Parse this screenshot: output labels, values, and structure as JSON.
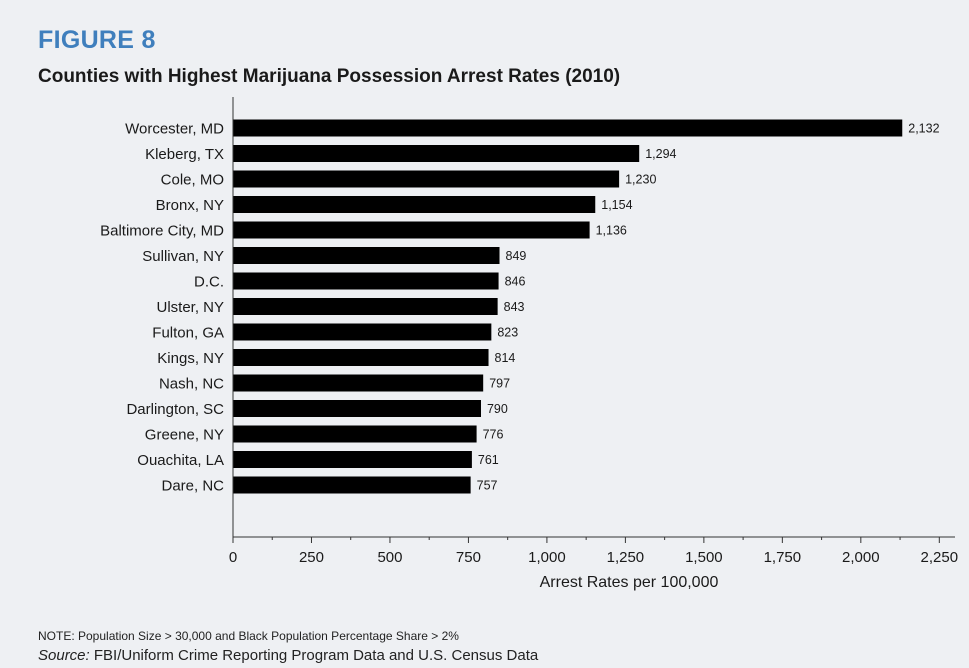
{
  "figure": {
    "label": "FIGURE 8",
    "title": "Counties with Highest Marijuana Possession Arrest Rates (2010)",
    "note": "NOTE: Population Size > 30,000 and Black Population Percentage Share > 2%",
    "source_prefix": "Source:",
    "source_text": " FBI/Uniform Crime Reporting Program Data and U.S. Census Data"
  },
  "chart_data": {
    "type": "bar",
    "orientation": "horizontal",
    "categories": [
      "Worcester, MD",
      "Kleberg, TX",
      "Cole, MO",
      "Bronx, NY",
      "Baltimore City, MD",
      "Sullivan, NY",
      "D.C.",
      "Ulster, NY",
      "Fulton, GA",
      "Kings, NY",
      "Nash, NC",
      "Darlington, SC",
      "Greene, NY",
      "Ouachita, LA",
      "Dare, NC"
    ],
    "values": [
      2132,
      1294,
      1230,
      1154,
      1136,
      849,
      846,
      843,
      823,
      814,
      797,
      790,
      776,
      761,
      757
    ],
    "value_labels": [
      "2,132",
      "1,294",
      "1,230",
      "1,154",
      "1,136",
      "849",
      "846",
      "843",
      "823",
      "814",
      "797",
      "790",
      "776",
      "761",
      "757"
    ],
    "xlabel": "Arrest Rates per 100,000",
    "ylabel": "",
    "xlim": [
      0,
      2300
    ],
    "xticks": [
      0,
      250,
      500,
      750,
      1000,
      1250,
      1500,
      1750,
      2000,
      2250
    ],
    "xtick_labels": [
      "0",
      "250",
      "500",
      "750",
      "1,000",
      "1,250",
      "1,500",
      "1,750",
      "2,000",
      "2,250"
    ],
    "bar_color": "#000000",
    "grid": false,
    "legend": "none"
  }
}
